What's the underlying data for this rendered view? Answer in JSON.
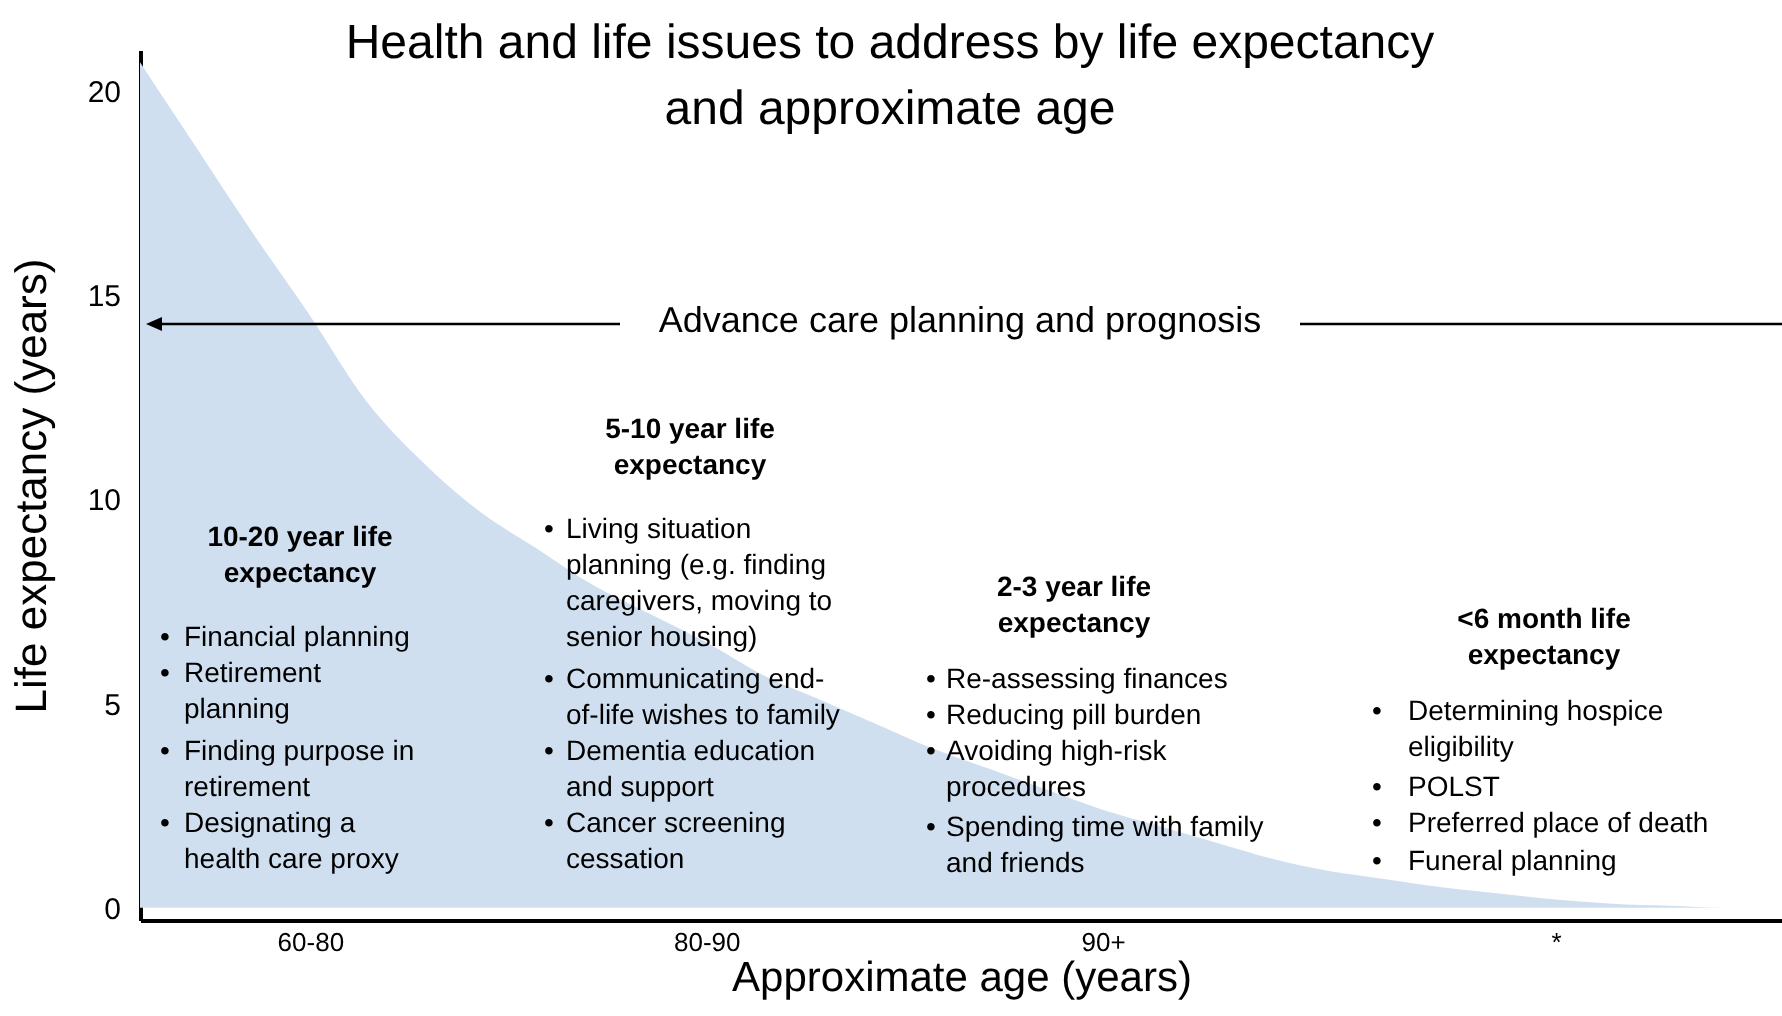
{
  "chart_data": {
    "type": "area",
    "title": "Health and life issues to address by life expectancy\nand approximate age",
    "xlabel": "Approximate age (years)",
    "ylabel": "Life expectancy (years)",
    "categories": [
      null,
      null,
      null,
      "60-80",
      null,
      null,
      null,
      null,
      null,
      null,
      "80-90",
      null,
      null,
      null,
      null,
      null,
      null,
      "90+",
      null,
      null,
      null,
      null,
      null,
      null,
      null,
      "*",
      null,
      null,
      null,
      null
    ],
    "series": [
      {
        "color": "#cfdff0",
        "values": [
          20.7,
          18.6,
          16.5,
          14.5,
          12.4,
          10.9,
          9.7,
          8.8,
          7.9,
          7.2,
          6.5,
          5.7,
          5.1,
          4.5,
          3.9,
          3.4,
          2.9,
          2.4,
          2.0,
          1.6,
          1.2,
          0.9,
          0.7,
          0.5,
          0.35,
          0.2,
          0.1,
          0.05,
          0,
          0
        ]
      }
    ],
    "ylim": [
      -0.3,
      21
    ],
    "yticks": [
      0,
      5,
      10,
      15,
      20
    ],
    "grid": false,
    "annotations": [
      "Advance care planning and prognosis",
      "10-20 year life\nexpectancy",
      "• Financial planning",
      "• Retirement\nplanning",
      "• Finding purpose in\nretirement",
      "• Designating a\nhealth care proxy",
      "5-10 year life\nexpectancy",
      "• Living situation\nplanning (e.g. finding\ncaregivers, moving to\nsenior housing)",
      "• Communicating end-\nof-life wishes to family",
      "• Dementia education\nand support",
      "• Cancer screening\ncessation",
      "2-3 year life\nexpectancy",
      "• Re-assessing finances",
      "• Reducing pill burden",
      "• Avoiding high-risk\nprocedures",
      "• Spending time with family\nand friends",
      "<6 month life\nexpectancy",
      "• Determining hospice\neligibility",
      "• POLST",
      "• Preferred place of death",
      "• Funeral planning"
    ]
  }
}
